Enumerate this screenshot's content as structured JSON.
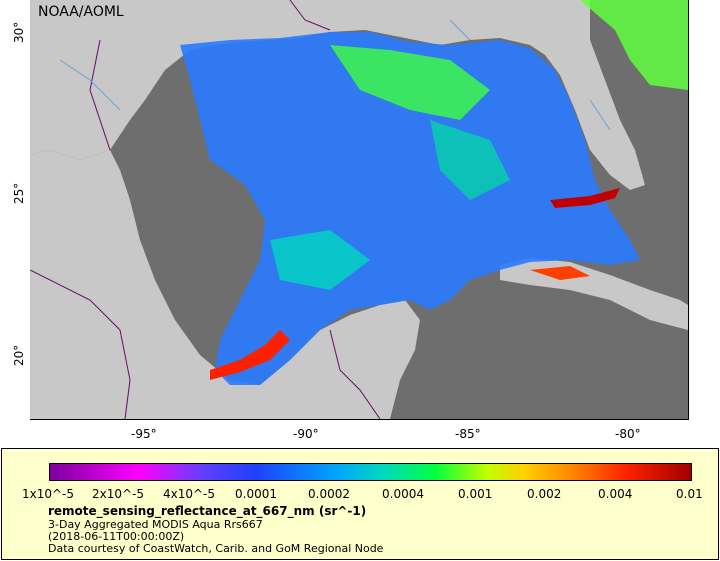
{
  "map": {
    "credit": "NOAA/AOML",
    "lat_ticks": [
      "30°",
      "25°",
      "20°"
    ],
    "lon_ticks": [
      "-95°",
      "-90°",
      "-85°",
      "-80°"
    ],
    "colors": {
      "water_nodata": "#6e6e6e",
      "land": "#c8c8c8",
      "legend_bg": "#ffffcc"
    }
  },
  "colorbar": {
    "labels": [
      "1x10^-5",
      "2x10^-5",
      "4x10^-5",
      "0.0001",
      "0.0002",
      "0.0004",
      "0.001",
      "0.002",
      "0.004",
      "0.01"
    ]
  },
  "legend": {
    "variable": "remote_sensing_reflectance_at_667_nm (sr^-1)",
    "dataset": "3-Day Aggregated MODIS Aqua Rrs667",
    "time": "(2018-06-11T00:00:00Z)",
    "source": "Data courtesy of CoastWatch, Carib. and GoM Regional Node"
  }
}
